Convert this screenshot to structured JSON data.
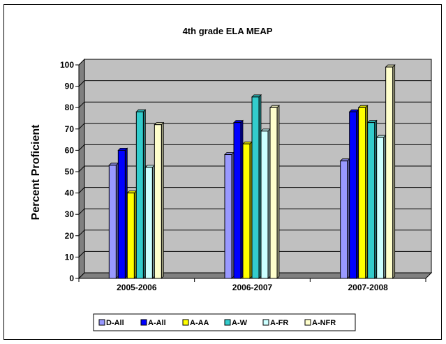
{
  "chart_data": {
    "type": "bar",
    "title": "4th grade ELA MEAP",
    "xlabel": "",
    "ylabel": "Percent Proficient",
    "categories": [
      "2005-2006",
      "2006-2007",
      "2007-2008"
    ],
    "ylim": [
      0,
      100
    ],
    "yticks": [
      "0",
      "10",
      "20",
      "30",
      "40",
      "50",
      "60",
      "70",
      "80",
      "90",
      "100"
    ],
    "grid": true,
    "legend_position": "bottom",
    "series": [
      {
        "name": "D-All",
        "color": "#9999ff",
        "values": [
          53,
          58,
          55
        ]
      },
      {
        "name": "A-All",
        "color": "#0000ff",
        "values": [
          60,
          73,
          78
        ]
      },
      {
        "name": "A-AA",
        "color": "#ffff00",
        "values": [
          40,
          63,
          80
        ]
      },
      {
        "name": "A-W",
        "color": "#33cccc",
        "values": [
          78,
          85,
          73
        ]
      },
      {
        "name": "A-FR",
        "color": "#ccffff",
        "values": [
          52,
          69,
          66
        ]
      },
      {
        "name": "A-NFR",
        "color": "#ffffcc",
        "values": [
          72,
          80,
          99
        ]
      }
    ]
  }
}
